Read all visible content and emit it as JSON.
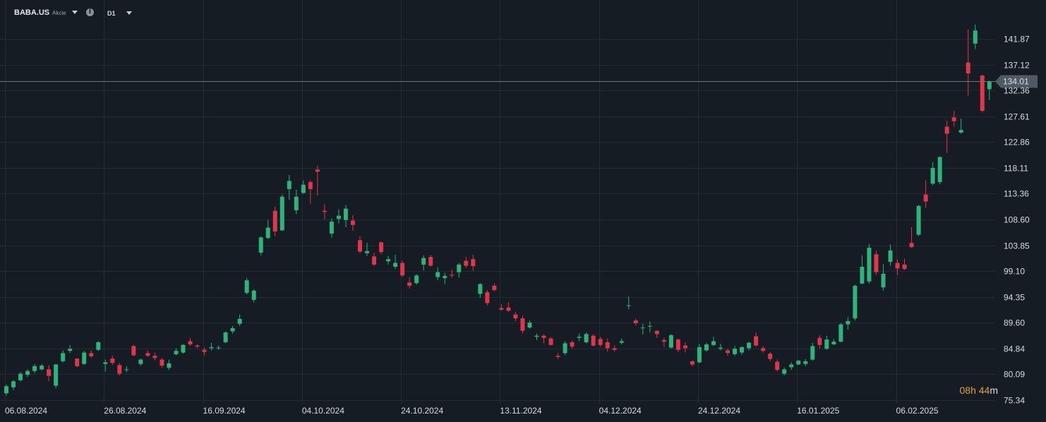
{
  "header": {
    "symbol": "BABA.US",
    "instrument_type": "Akcie",
    "timeframe": "D1",
    "icons": [
      "symbol-dropdown-caret-icon",
      "info-icon",
      "timeframe-dropdown-caret-icon"
    ]
  },
  "countdown": {
    "hours": "08",
    "hours_unit": "h",
    "minutes": "44",
    "minutes_unit": "m"
  },
  "colors": {
    "background": "#161c23",
    "grid": "#232b34",
    "up": "#2fb37a",
    "down": "#e0364c",
    "price_line": "#6b7681",
    "price_tag": "#4f5a65",
    "timer": "#e0a23a"
  },
  "chart_data": {
    "type": "candlestick",
    "grid": true,
    "ylim": [
      73.9,
      146.8
    ],
    "y_ticks": [
      "141.87",
      "137.12",
      "132.36",
      "127.61",
      "122.86",
      "118.11",
      "113.36",
      "108.60",
      "103.85",
      "99.10",
      "94.35",
      "89.60",
      "84.84",
      "80.09",
      "75.34"
    ],
    "x_ticks": [
      {
        "label": "06.08.2024",
        "index": 0
      },
      {
        "label": "26.08.2024",
        "index": 14
      },
      {
        "label": "16.09.2024",
        "index": 28
      },
      {
        "label": "04.10.2024",
        "index": 42
      },
      {
        "label": "24.10.2024",
        "index": 56
      },
      {
        "label": "13.11.2024",
        "index": 70
      },
      {
        "label": "04.12.2024",
        "index": 84
      },
      {
        "label": "24.12.2024",
        "index": 98
      },
      {
        "label": "16.01.2025",
        "index": 112
      },
      {
        "label": "06.02.2025",
        "index": 126
      }
    ],
    "last_price": "134.01",
    "candles": [
      [
        76.6,
        78.2,
        76.2,
        77.9
      ],
      [
        77.7,
        79.0,
        77.2,
        78.8
      ],
      [
        79.0,
        80.5,
        78.8,
        80.2
      ],
      [
        80.0,
        81.0,
        79.6,
        80.7
      ],
      [
        80.7,
        82.0,
        80.3,
        81.6
      ],
      [
        81.0,
        82.0,
        80.8,
        81.7
      ],
      [
        81.0,
        81.8,
        78.8,
        79.8
      ],
      [
        78.0,
        82.0,
        77.5,
        81.9
      ],
      [
        82.5,
        84.5,
        82.3,
        84.0
      ],
      [
        84.4,
        85.5,
        84.0,
        84.8
      ],
      [
        83.0,
        83.0,
        81.4,
        81.6
      ],
      [
        82.0,
        84.4,
        81.8,
        84.1
      ],
      [
        84.0,
        84.5,
        83.1,
        83.4
      ],
      [
        84.6,
        86.2,
        84.4,
        86.0
      ],
      [
        82.0,
        82.8,
        80.6,
        82.3
      ],
      [
        83.0,
        83.5,
        81.8,
        82.2
      ],
      [
        81.8,
        82.2,
        79.9,
        80.2
      ],
      [
        81.0,
        81.6,
        80.5,
        81.0
      ],
      [
        85.3,
        85.5,
        83.4,
        83.6
      ],
      [
        82.0,
        83.0,
        81.7,
        82.8
      ],
      [
        84.0,
        84.5,
        83.3,
        83.5
      ],
      [
        83.5,
        84.1,
        82.7,
        83.1
      ],
      [
        82.8,
        83.1,
        81.3,
        81.7
      ],
      [
        81.3,
        82.8,
        80.9,
        82.1
      ],
      [
        83.8,
        84.9,
        83.6,
        84.4
      ],
      [
        84.1,
        85.6,
        83.9,
        85.5
      ],
      [
        86.2,
        86.8,
        85.3,
        85.6
      ],
      [
        85.4,
        85.6,
        84.9,
        85.2
      ],
      [
        84.6,
        85.0,
        83.6,
        84.2
      ],
      [
        84.9,
        85.9,
        84.5,
        85.1
      ],
      [
        84.9,
        85.4,
        84.6,
        85.0
      ],
      [
        86.0,
        88.0,
        85.8,
        87.8
      ],
      [
        88.0,
        89.0,
        87.6,
        88.6
      ],
      [
        89.4,
        91.1,
        89.0,
        90.3
      ],
      [
        95.1,
        97.8,
        94.8,
        97.4
      ],
      [
        93.8,
        95.8,
        93.3,
        95.5
      ],
      [
        102.5,
        105.5,
        102.0,
        105.3
      ],
      [
        105.2,
        108.5,
        105.0,
        107.1
      ],
      [
        110.2,
        111.0,
        105.5,
        106.4
      ],
      [
        106.6,
        113.2,
        106.5,
        112.8
      ],
      [
        114.2,
        116.8,
        112.2,
        115.7
      ],
      [
        110.3,
        114.1,
        109.6,
        112.8
      ],
      [
        113.5,
        115.8,
        113.3,
        115.0
      ],
      [
        115.5,
        115.8,
        111.5,
        114.2
      ],
      [
        117.8,
        118.5,
        113.0,
        117.4
      ],
      [
        110.2,
        111.4,
        108.6,
        110.0
      ],
      [
        106.0,
        108.8,
        105.3,
        108.2
      ],
      [
        108.7,
        110.5,
        107.9,
        109.3
      ],
      [
        108.5,
        111.3,
        107.2,
        110.6
      ],
      [
        108.4,
        109.4,
        106.5,
        107.6
      ],
      [
        104.8,
        105.5,
        102.4,
        102.7
      ],
      [
        102.4,
        104.3,
        101.9,
        102.8
      ],
      [
        101.8,
        102.5,
        100.0,
        100.3
      ],
      [
        104.4,
        104.5,
        102.2,
        102.6
      ],
      [
        100.9,
        101.9,
        100.3,
        101.3
      ],
      [
        99.9,
        102.1,
        99.5,
        100.6
      ],
      [
        100.6,
        101.0,
        98.0,
        98.3
      ],
      [
        97.0,
        98.0,
        95.9,
        96.4
      ],
      [
        96.9,
        98.5,
        96.6,
        98.3
      ],
      [
        100.3,
        102.0,
        99.2,
        101.5
      ],
      [
        101.7,
        102.1,
        99.9,
        100.1
      ],
      [
        98.0,
        99.8,
        97.4,
        98.9
      ],
      [
        97.8,
        98.8,
        96.7,
        98.2
      ],
      [
        98.4,
        99.4,
        97.9,
        98.3
      ],
      [
        98.9,
        100.6,
        97.9,
        100.3
      ],
      [
        101.0,
        101.7,
        99.7,
        100.1
      ],
      [
        101.3,
        102.1,
        99.1,
        100.0
      ],
      [
        94.9,
        96.9,
        94.2,
        96.7
      ],
      [
        95.2,
        95.6,
        92.8,
        93.2
      ],
      [
        96.4,
        96.8,
        95.4,
        95.6
      ],
      [
        92.3,
        93.0,
        91.8,
        92.0
      ],
      [
        92.4,
        93.4,
        91.6,
        91.8
      ],
      [
        91.1,
        91.6,
        89.9,
        90.4
      ],
      [
        90.4,
        90.9,
        87.6,
        88.1
      ],
      [
        88.7,
        90.0,
        88.5,
        89.6
      ],
      [
        87.0,
        87.6,
        86.4,
        87.2
      ],
      [
        87.2,
        87.5,
        85.8,
        86.8
      ],
      [
        86.7,
        86.9,
        85.4,
        85.5
      ],
      [
        83.5,
        84.0,
        82.9,
        83.3
      ],
      [
        84.0,
        86.2,
        83.6,
        85.8
      ],
      [
        86.0,
        86.3,
        84.8,
        85.2
      ],
      [
        86.8,
        87.6,
        86.2,
        87.0
      ],
      [
        86.0,
        87.8,
        85.8,
        87.5
      ],
      [
        87.2,
        87.5,
        85.2,
        85.4
      ],
      [
        86.6,
        87.0,
        85.2,
        85.5
      ],
      [
        86.0,
        86.7,
        84.3,
        84.9
      ],
      [
        84.9,
        85.4,
        84.3,
        84.6
      ],
      [
        85.9,
        86.7,
        85.6,
        86.2
      ],
      [
        92.8,
        94.4,
        92.1,
        92.8
      ],
      [
        90.0,
        90.4,
        89.1,
        89.5
      ],
      [
        88.6,
        89.4,
        87.4,
        88.7
      ],
      [
        88.9,
        89.8,
        87.8,
        89.0
      ],
      [
        88.1,
        88.2,
        86.8,
        87.5
      ],
      [
        86.4,
        86.8,
        85.1,
        86.1
      ],
      [
        85.0,
        87.5,
        84.9,
        87.3
      ],
      [
        86.5,
        86.7,
        84.2,
        84.6
      ],
      [
        85.4,
        86.0,
        84.1,
        84.9
      ],
      [
        82.5,
        82.6,
        81.6,
        81.9
      ],
      [
        82.3,
        85.7,
        82.1,
        85.1
      ],
      [
        84.5,
        85.9,
        84.3,
        85.6
      ],
      [
        85.5,
        87.0,
        85.3,
        86.2
      ],
      [
        84.8,
        85.7,
        84.5,
        85.0
      ],
      [
        84.5,
        84.8,
        83.5,
        84.0
      ],
      [
        83.8,
        85.3,
        83.5,
        84.8
      ],
      [
        84.1,
        85.2,
        83.7,
        85.1
      ],
      [
        84.9,
        86.1,
        84.5,
        85.9
      ],
      [
        87.1,
        87.8,
        85.2,
        85.4
      ],
      [
        84.9,
        85.3,
        84.1,
        84.4
      ],
      [
        83.9,
        84.2,
        82.5,
        82.9
      ],
      [
        82.4,
        82.8,
        80.6,
        80.9
      ],
      [
        80.2,
        81.3,
        79.9,
        81.0
      ],
      [
        81.4,
        82.3,
        80.9,
        81.9
      ],
      [
        81.9,
        82.7,
        81.8,
        82.6
      ],
      [
        82.0,
        82.9,
        81.6,
        82.5
      ],
      [
        82.8,
        85.9,
        82.6,
        85.3
      ],
      [
        86.8,
        87.3,
        84.8,
        85.5
      ],
      [
        84.8,
        87.2,
        84.6,
        86.5
      ],
      [
        85.6,
        86.6,
        85.5,
        86.1
      ],
      [
        86.1,
        89.5,
        86.0,
        89.3
      ],
      [
        89.3,
        90.6,
        88.3,
        89.9
      ],
      [
        90.4,
        96.6,
        90.0,
        96.4
      ],
      [
        96.8,
        102.0,
        96.7,
        99.9
      ],
      [
        97.2,
        104.1,
        96.8,
        103.4
      ],
      [
        102.2,
        102.9,
        98.4,
        98.9
      ],
      [
        96.1,
        100.4,
        95.5,
        98.6
      ],
      [
        100.8,
        104.0,
        100.1,
        102.9
      ],
      [
        100.6,
        101.2,
        98.4,
        99.6
      ],
      [
        100.3,
        101.4,
        99.3,
        99.5
      ],
      [
        104.3,
        107.2,
        103.4,
        103.5
      ],
      [
        105.8,
        111.3,
        105.6,
        111.1
      ],
      [
        113.2,
        115.8,
        110.7,
        111.9
      ],
      [
        115.2,
        119.2,
        114.9,
        118.1
      ],
      [
        115.5,
        120.2,
        115.1,
        120.1
      ],
      [
        125.7,
        126.8,
        120.9,
        124.4
      ],
      [
        127.4,
        128.6,
        125.7,
        126.7
      ],
      [
        124.6,
        127.2,
        124.4,
        125.1
      ],
      [
        137.5,
        143.6,
        131.4,
        135.5
      ],
      [
        141.0,
        144.5,
        140.0,
        143.4
      ],
      [
        135.1,
        135.3,
        128.3,
        128.6
      ],
      [
        132.6,
        134.2,
        130.6,
        134.0
      ]
    ]
  }
}
